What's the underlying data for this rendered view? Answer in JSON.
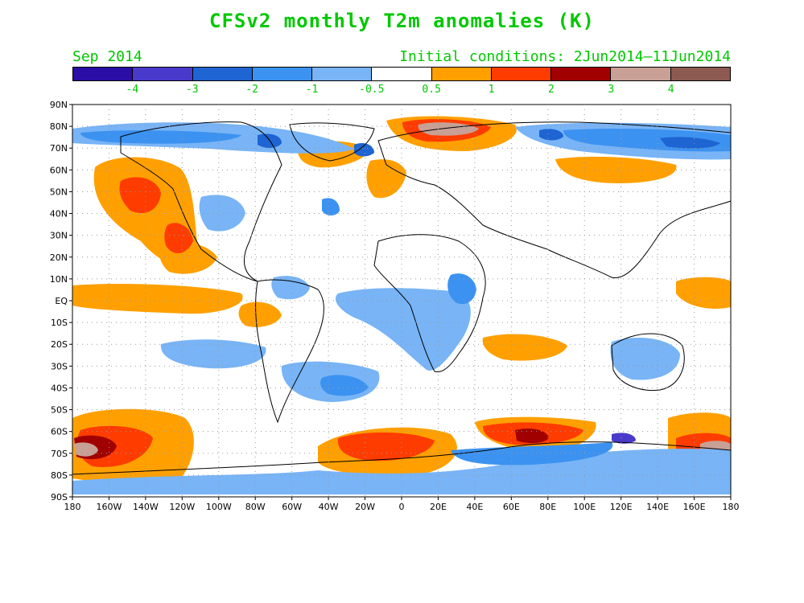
{
  "title": "CFSv2 monthly T2m anomalies (K)",
  "valid_month": "Sep 2014",
  "initial_conditions": "Initial conditions: 2Jun2014–11Jun2014",
  "colorbar": {
    "colors": [
      "#2a0ea6",
      "#4a3acc",
      "#1e64d2",
      "#3c92f0",
      "#78b4f6",
      "#ffffff",
      "#ffa000",
      "#ff3c00",
      "#a00000",
      "#c8a096",
      "#8c5a50"
    ],
    "labels": [
      "-4",
      "-3",
      "-2",
      "-1",
      "-0.5",
      "0.5",
      "1",
      "2",
      "3",
      "4"
    ]
  },
  "axes": {
    "lat_labels": [
      "90N",
      "80N",
      "70N",
      "60N",
      "50N",
      "40N",
      "30N",
      "20N",
      "10N",
      "EQ",
      "10S",
      "20S",
      "30S",
      "40S",
      "50S",
      "60S",
      "70S",
      "80S",
      "90S"
    ],
    "lon_labels": [
      "180",
      "160W",
      "140W",
      "120W",
      "100W",
      "80W",
      "60W",
      "40W",
      "20W",
      "0",
      "20E",
      "40E",
      "60E",
      "80E",
      "100E",
      "120E",
      "140E",
      "160E",
      "180"
    ]
  }
}
